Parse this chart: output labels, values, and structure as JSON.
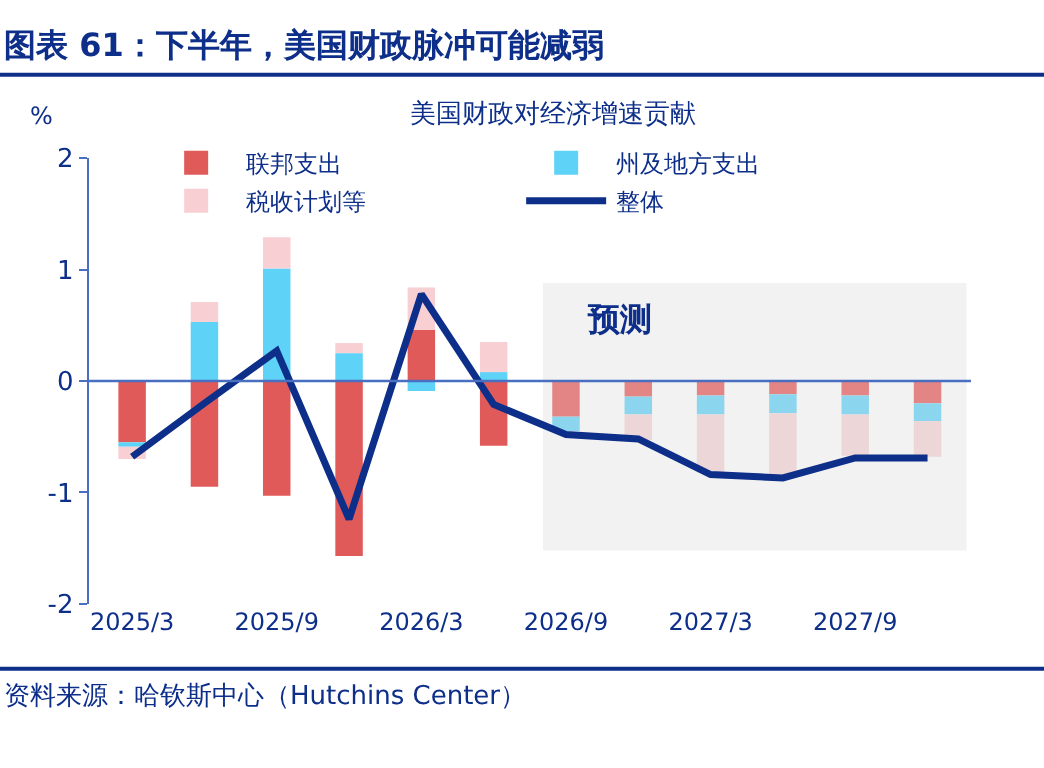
{
  "chart_data": {
    "type": "bar",
    "stacked": true,
    "title": "图表 61：下半年，美国财政脉冲可能减弱",
    "subtitle": "美国财政对经济增速贡献",
    "ylabel": "%",
    "categories": [
      "2025/3",
      null,
      "2025/9",
      null,
      "2026/3",
      null,
      "2026/9",
      null,
      "2027/3",
      null,
      "2027/9",
      null
    ],
    "series": [
      {
        "name": "联邦支出",
        "color": "#e05a5a",
        "colors": [
          "#e05a5a",
          "#e05a5a",
          "#e05a5a",
          "#e05a5a",
          "#e05a5a",
          "#e05a5a",
          "#e38585",
          "#e38585",
          "#e38585",
          "#e38585",
          "#e38585",
          "#e38585"
        ],
        "values": [
          -0.55,
          -0.95,
          -1.03,
          -1.57,
          0.46,
          -0.58,
          -0.32,
          -0.14,
          -0.13,
          -0.12,
          -0.13,
          -0.2
        ]
      },
      {
        "name": "州及地方支出",
        "color": "#5fd3f7",
        "colors": [
          "#5fd3f7",
          "#5fd3f7",
          "#5fd3f7",
          "#5fd3f7",
          "#5fd3f7",
          "#5fd3f7",
          "#8bd6ee",
          "#8bd6ee",
          "#8bd6ee",
          "#8bd6ee",
          "#8bd6ee",
          "#8bd6ee"
        ],
        "values": [
          -0.04,
          0.53,
          1.01,
          0.25,
          -0.09,
          0.08,
          -0.13,
          -0.16,
          -0.17,
          -0.17,
          -0.17,
          -0.16
        ]
      },
      {
        "name": "税收计划等",
        "color": "#f8cfd2",
        "colors": [
          "#f8cfd2",
          "#f8cfd2",
          "#f8cfd2",
          "#f8cfd2",
          "#f8cfd2",
          "#f8cfd2",
          "#ecd6d8",
          "#ecd6d8",
          "#ecd6d8",
          "#ecd6d8",
          "#ecd6d8",
          "#ecd6d8"
        ],
        "values": [
          -0.11,
          0.18,
          0.28,
          0.09,
          0.38,
          0.27,
          null,
          -0.23,
          -0.52,
          -0.56,
          -0.37,
          -0.32
        ]
      },
      {
        "name": "整体",
        "type": "line",
        "color": "#0d2f8a",
        "values": [
          -0.68,
          -0.2,
          0.27,
          -1.24,
          0.78,
          -0.21,
          -0.48,
          -0.52,
          -0.84,
          -0.87,
          -0.69,
          -0.69
        ]
      }
    ],
    "ylim": [
      -2,
      2
    ],
    "yticks": [
      -2,
      -1,
      0,
      1,
      2
    ],
    "grid": false,
    "legend": "top",
    "ref_lines": [
      {
        "axis": "y",
        "value": 0,
        "color": "#4a6fc0"
      }
    ],
    "annotations": [
      "预测",
      "资料来源：哈钦斯中心（Hutchins Center）"
    ]
  }
}
